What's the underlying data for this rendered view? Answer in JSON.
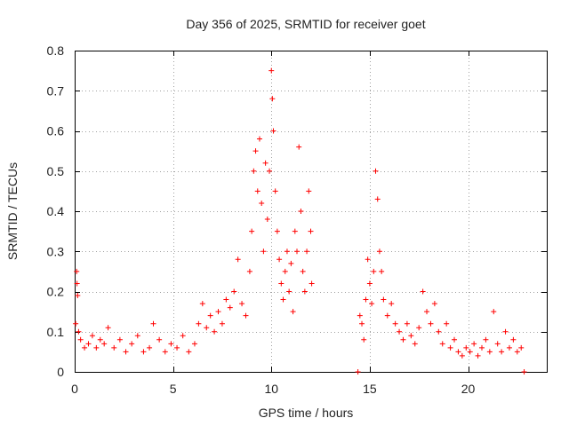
{
  "chart_data": {
    "type": "scatter",
    "title": "Day 356 of 2025, SRMTID for receiver goet",
    "xlabel": "GPS time / hours",
    "ylabel": "SRMTID / TECUs",
    "xlim": [
      0,
      24
    ],
    "ylim": [
      0,
      0.8
    ],
    "xticks": [
      0,
      5,
      10,
      15,
      20
    ],
    "xtick_labels": [
      "0",
      "5",
      "10",
      "15",
      "20"
    ],
    "yticks": [
      0,
      0.1,
      0.2,
      0.3,
      0.4,
      0.5,
      0.6,
      0.7,
      0.8
    ],
    "ytick_labels": [
      "0",
      "0.1",
      "0.2",
      "0.3",
      "0.4",
      "0.5",
      "0.6",
      "0.7",
      "0.8"
    ],
    "grid": true,
    "marker": "+",
    "color": "#ff0000",
    "series": [
      {
        "name": "SRMTID",
        "points": [
          [
            0.05,
            0.12
          ],
          [
            0.1,
            0.25
          ],
          [
            0.12,
            0.22
          ],
          [
            0.15,
            0.19
          ],
          [
            0.2,
            0.1
          ],
          [
            0.3,
            0.08
          ],
          [
            0.5,
            0.06
          ],
          [
            0.7,
            0.07
          ],
          [
            0.9,
            0.09
          ],
          [
            1.1,
            0.06
          ],
          [
            1.3,
            0.08
          ],
          [
            1.5,
            0.07
          ],
          [
            1.7,
            0.11
          ],
          [
            2.0,
            0.06
          ],
          [
            2.3,
            0.08
          ],
          [
            2.6,
            0.05
          ],
          [
            2.9,
            0.07
          ],
          [
            3.2,
            0.09
          ],
          [
            3.5,
            0.05
          ],
          [
            3.8,
            0.06
          ],
          [
            4.0,
            0.12
          ],
          [
            4.3,
            0.08
          ],
          [
            4.6,
            0.05
          ],
          [
            4.9,
            0.07
          ],
          [
            5.2,
            0.06
          ],
          [
            5.5,
            0.09
          ],
          [
            5.8,
            0.05
          ],
          [
            6.1,
            0.07
          ],
          [
            6.3,
            0.12
          ],
          [
            6.5,
            0.17
          ],
          [
            6.7,
            0.11
          ],
          [
            6.9,
            0.14
          ],
          [
            7.1,
            0.1
          ],
          [
            7.3,
            0.15
          ],
          [
            7.5,
            0.12
          ],
          [
            7.7,
            0.18
          ],
          [
            7.9,
            0.16
          ],
          [
            8.1,
            0.2
          ],
          [
            8.3,
            0.28
          ],
          [
            8.5,
            0.17
          ],
          [
            8.7,
            0.14
          ],
          [
            8.9,
            0.25
          ],
          [
            9.0,
            0.35
          ],
          [
            9.1,
            0.5
          ],
          [
            9.2,
            0.55
          ],
          [
            9.3,
            0.45
          ],
          [
            9.4,
            0.58
          ],
          [
            9.5,
            0.42
          ],
          [
            9.6,
            0.3
          ],
          [
            9.7,
            0.52
          ],
          [
            9.8,
            0.38
          ],
          [
            9.9,
            0.5
          ],
          [
            10.0,
            0.75
          ],
          [
            10.05,
            0.68
          ],
          [
            10.1,
            0.6
          ],
          [
            10.2,
            0.45
          ],
          [
            10.3,
            0.35
          ],
          [
            10.4,
            0.28
          ],
          [
            10.5,
            0.22
          ],
          [
            10.6,
            0.18
          ],
          [
            10.7,
            0.25
          ],
          [
            10.8,
            0.3
          ],
          [
            10.9,
            0.2
          ],
          [
            11.0,
            0.27
          ],
          [
            11.1,
            0.15
          ],
          [
            11.2,
            0.35
          ],
          [
            11.3,
            0.3
          ],
          [
            11.4,
            0.56
          ],
          [
            11.5,
            0.4
          ],
          [
            11.6,
            0.25
          ],
          [
            11.7,
            0.2
          ],
          [
            11.8,
            0.3
          ],
          [
            11.9,
            0.45
          ],
          [
            12.0,
            0.35
          ],
          [
            12.05,
            0.22
          ],
          [
            14.4,
            0.0
          ],
          [
            14.5,
            0.14
          ],
          [
            14.6,
            0.12
          ],
          [
            14.7,
            0.08
          ],
          [
            14.8,
            0.18
          ],
          [
            14.9,
            0.28
          ],
          [
            15.0,
            0.22
          ],
          [
            15.1,
            0.17
          ],
          [
            15.2,
            0.25
          ],
          [
            15.3,
            0.5
          ],
          [
            15.4,
            0.43
          ],
          [
            15.5,
            0.3
          ],
          [
            15.6,
            0.25
          ],
          [
            15.7,
            0.18
          ],
          [
            15.9,
            0.14
          ],
          [
            16.1,
            0.17
          ],
          [
            16.3,
            0.12
          ],
          [
            16.5,
            0.1
          ],
          [
            16.7,
            0.08
          ],
          [
            16.9,
            0.12
          ],
          [
            17.1,
            0.09
          ],
          [
            17.3,
            0.07
          ],
          [
            17.5,
            0.11
          ],
          [
            17.7,
            0.2
          ],
          [
            17.9,
            0.15
          ],
          [
            18.1,
            0.12
          ],
          [
            18.3,
            0.17
          ],
          [
            18.5,
            0.1
          ],
          [
            18.7,
            0.07
          ],
          [
            18.9,
            0.12
          ],
          [
            19.1,
            0.06
          ],
          [
            19.3,
            0.08
          ],
          [
            19.5,
            0.05
          ],
          [
            19.7,
            0.04
          ],
          [
            19.9,
            0.06
          ],
          [
            20.1,
            0.05
          ],
          [
            20.3,
            0.07
          ],
          [
            20.5,
            0.04
          ],
          [
            20.7,
            0.06
          ],
          [
            20.9,
            0.08
          ],
          [
            21.1,
            0.05
          ],
          [
            21.3,
            0.15
          ],
          [
            21.5,
            0.07
          ],
          [
            21.7,
            0.05
          ],
          [
            21.9,
            0.1
          ],
          [
            22.1,
            0.06
          ],
          [
            22.3,
            0.08
          ],
          [
            22.5,
            0.05
          ],
          [
            22.7,
            0.06
          ],
          [
            22.85,
            0.0
          ]
        ]
      }
    ]
  }
}
